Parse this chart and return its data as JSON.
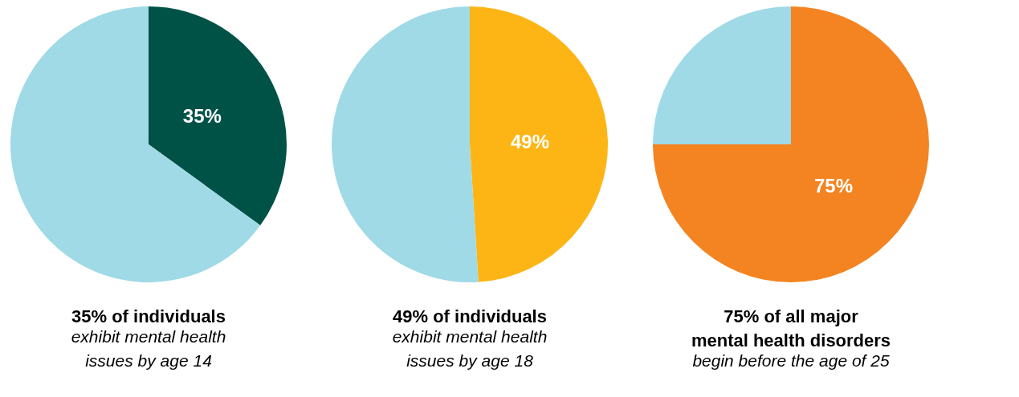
{
  "chart_data": [
    {
      "type": "pie",
      "title": "35% of individuals",
      "subtitle": "exhibit mental health\nissues by age 14",
      "categories": [
        null,
        null
      ],
      "values": [
        35,
        65
      ],
      "colors": [
        "#005247",
        "#9fdae6"
      ],
      "value_labels": [
        "35%",
        null
      ],
      "legend": false
    },
    {
      "type": "pie",
      "title": "49% of individuals",
      "subtitle": "exhibit mental health\nissues by age 18",
      "categories": [
        null,
        null
      ],
      "values": [
        49,
        51
      ],
      "colors": [
        "#fdb515",
        "#9fdae6"
      ],
      "value_labels": [
        "49%",
        null
      ],
      "legend": false
    },
    {
      "type": "pie",
      "title": "75% of all major\nmental health disorders",
      "subtitle": "begin before the age of 25",
      "categories": [
        null,
        null
      ],
      "values": [
        75,
        25
      ],
      "colors": [
        "#f38421",
        "#9fdae6"
      ],
      "value_labels": [
        "75%",
        null
      ],
      "legend": false
    }
  ]
}
